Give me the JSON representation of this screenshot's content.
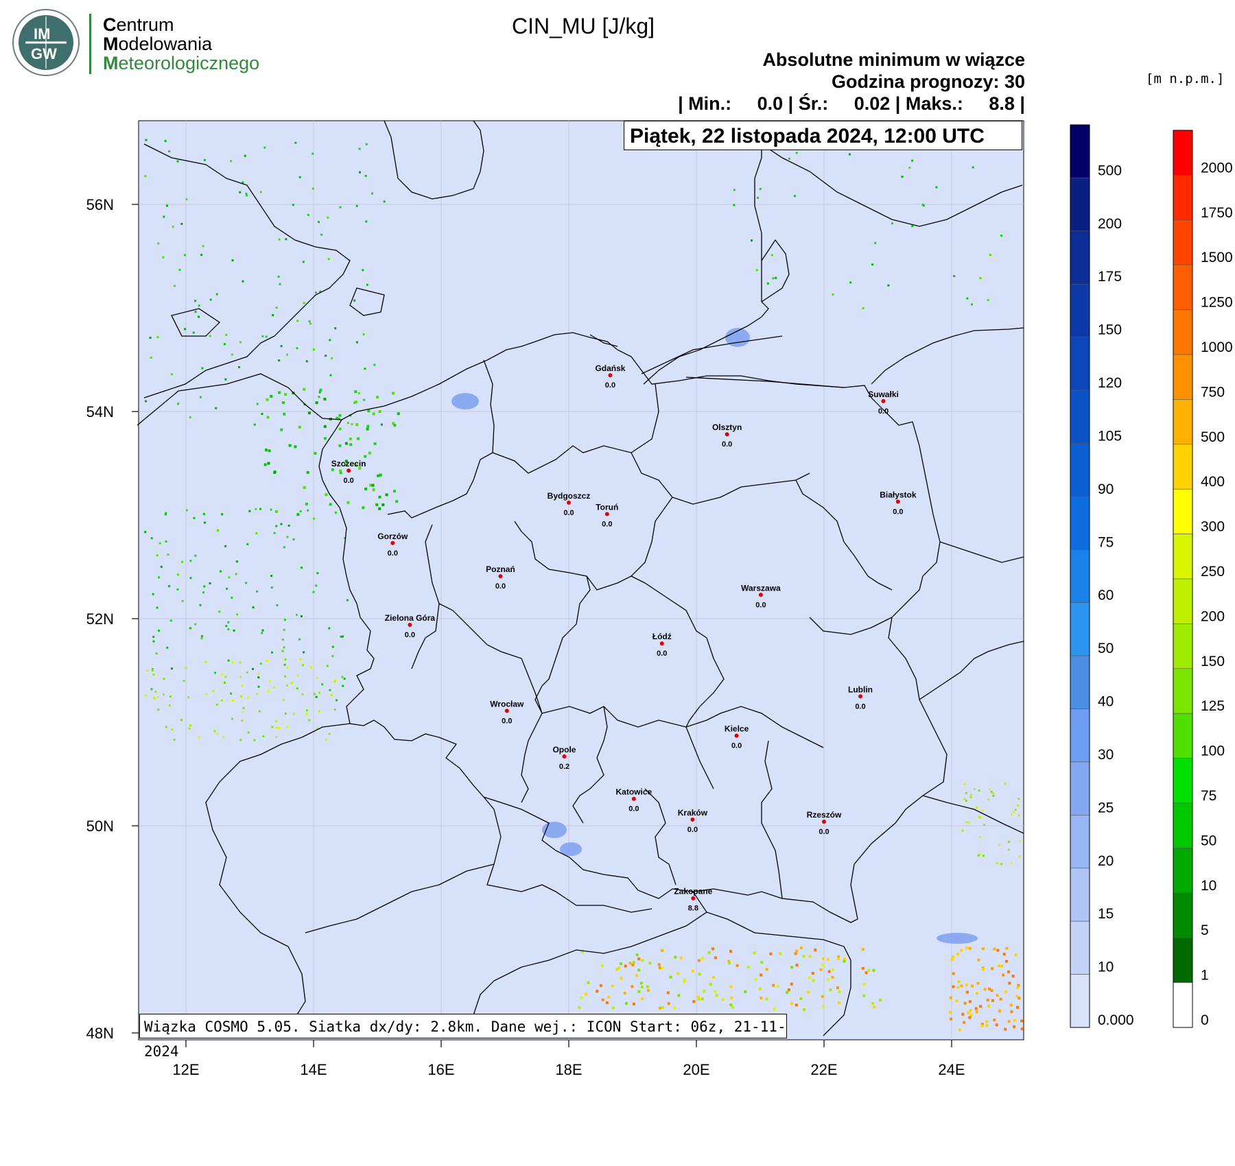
{
  "logo": {
    "badge_text": "IMGW",
    "badge_top": "IM",
    "badge_bottom": "GW",
    "line1_cap": "C",
    "line1_rest": "entrum",
    "line2_cap": "M",
    "line2_rest": "odelowania",
    "line3_cap": "M",
    "line3_rest": "eteorologicznego"
  },
  "header": {
    "title": "CIN_MU [J/kg]",
    "subtitle": "Absolutne minimum w wiązce",
    "forecast_hour": "Godzina prognozy: 30",
    "stats": "| Min.:     0.0 | Śr.:     0.02 | Maks.:     8.8 |",
    "date": "Piątek, 22 listopada 2024, 12:00 UTC"
  },
  "footer": "Wiązka COSMO 5.05. Siatka dx/dy: 2.8km. Dane wej.: ICON Start: 06z, 21-11-2024",
  "axes": {
    "lat_labels": [
      "56N",
      "54N",
      "52N",
      "50N",
      "48N"
    ],
    "lon_labels": [
      "12E",
      "14E",
      "16E",
      "18E",
      "20E",
      "22E",
      "24E"
    ]
  },
  "colorbar_cin": {
    "labels": [
      "500",
      "200",
      "175",
      "150",
      "120",
      "105",
      "90",
      "75",
      "60",
      "50",
      "40",
      "30",
      "25",
      "20",
      "15",
      "10",
      "0.000"
    ],
    "colors": [
      "#000066",
      "#0a1f80",
      "#0c2d96",
      "#0d3aa8",
      "#0b47b8",
      "#0b52c6",
      "#0c5fd2",
      "#0d6de0",
      "#1a80ea",
      "#2b95f0",
      "#4a8ee6",
      "#6c9df0",
      "#82a8f2",
      "#98b6f4",
      "#aec5f6",
      "#c3d3f8",
      "#d7e1fa"
    ]
  },
  "colorbar_alt": {
    "units": "[m n.p.m.]",
    "labels": [
      "2000",
      "1750",
      "1500",
      "1250",
      "1000",
      "750",
      "500",
      "400",
      "300",
      "250",
      "200",
      "150",
      "125",
      "100",
      "75",
      "50",
      "10",
      "5",
      "1",
      "0"
    ],
    "colors": [
      "#ff0000",
      "#ff2a00",
      "#ff4400",
      "#ff5e00",
      "#ff7700",
      "#ff9000",
      "#ffb000",
      "#ffd200",
      "#ffff00",
      "#d9f500",
      "#bff000",
      "#a0ec00",
      "#7de600",
      "#4fe000",
      "#00e000",
      "#00c800",
      "#00aa00",
      "#008a00",
      "#006a00",
      "#ffffff"
    ]
  },
  "cities": [
    {
      "name": "Gdańsk",
      "value": "0.0",
      "lon": 18.65,
      "lat": 54.35
    },
    {
      "name": "Olsztyn",
      "value": "0.0",
      "lon": 20.48,
      "lat": 53.78
    },
    {
      "name": "Suwałki",
      "value": "0.0",
      "lon": 22.93,
      "lat": 54.1
    },
    {
      "name": "Szczecin",
      "value": "0.0",
      "lon": 14.55,
      "lat": 53.43
    },
    {
      "name": "Bydgoszcz",
      "value": "0.0",
      "lon": 18.0,
      "lat": 53.12
    },
    {
      "name": "Toruń",
      "value": "0.0",
      "lon": 18.6,
      "lat": 53.01
    },
    {
      "name": "Białystok",
      "value": "0.0",
      "lon": 23.16,
      "lat": 53.13
    },
    {
      "name": "Gorzów",
      "value": "0.0",
      "lon": 15.24,
      "lat": 52.73
    },
    {
      "name": "Poznań",
      "value": "0.0",
      "lon": 16.93,
      "lat": 52.41
    },
    {
      "name": "Warszawa",
      "value": "0.0",
      "lon": 21.01,
      "lat": 52.23
    },
    {
      "name": "Zielona Góra",
      "value": "0.0",
      "lon": 15.51,
      "lat": 51.94
    },
    {
      "name": "Łódź",
      "value": "0.0",
      "lon": 19.46,
      "lat": 51.76
    },
    {
      "name": "Lublin",
      "value": "0.0",
      "lon": 22.57,
      "lat": 51.25
    },
    {
      "name": "Wrocław",
      "value": "0.0",
      "lon": 17.03,
      "lat": 51.11
    },
    {
      "name": "Kielce",
      "value": "0.0",
      "lon": 20.63,
      "lat": 50.87
    },
    {
      "name": "Opole",
      "value": "0.2",
      "lon": 17.93,
      "lat": 50.67
    },
    {
      "name": "Katowice",
      "value": "0.0",
      "lon": 19.02,
      "lat": 50.26
    },
    {
      "name": "Kraków",
      "value": "0.0",
      "lon": 19.94,
      "lat": 50.06
    },
    {
      "name": "Rzeszów",
      "value": "0.0",
      "lon": 22.0,
      "lat": 50.04
    },
    {
      "name": "Zakopane",
      "value": "8.8",
      "lon": 19.95,
      "lat": 49.3
    }
  ],
  "colors": {
    "map_background": "#d7e1fa",
    "border": "#000000",
    "grid": "#c4c8d8",
    "city_dot": "#e00000"
  }
}
